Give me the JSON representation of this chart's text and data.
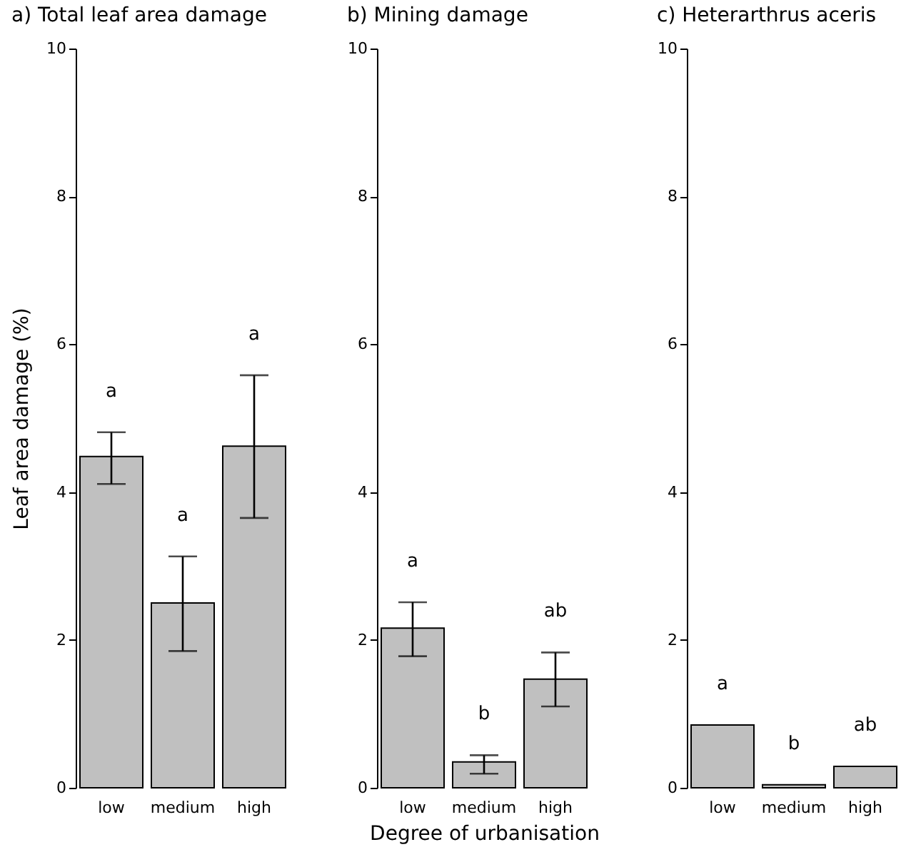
{
  "chart_data": [
    {
      "type": "bar",
      "title": "a) Total leaf area damage",
      "ylabel": "Leaf area damage (%)",
      "categories": [
        "low",
        "medium",
        "high"
      ],
      "values": [
        4.48,
        2.5,
        4.62
      ],
      "errors": [
        [
          4.11,
          4.81
        ],
        [
          1.85,
          3.13
        ],
        [
          3.65,
          5.58
        ]
      ],
      "color": "#c0c0c0",
      "ylim": [
        0,
        10
      ],
      "yticks": [
        0,
        2,
        4,
        6,
        8,
        10
      ],
      "annotations": [
        "a",
        "a",
        "a"
      ]
    },
    {
      "type": "bar",
      "title": "b) Mining damage",
      "xlabel": "Degree of urbanisation",
      "categories": [
        "low",
        "medium",
        "high"
      ],
      "values": [
        2.16,
        0.35,
        1.47
      ],
      "errors": [
        [
          1.78,
          2.51
        ],
        [
          0.19,
          0.44
        ],
        [
          1.1,
          1.83
        ]
      ],
      "color": "#c0c0c0",
      "ylim": [
        0,
        10
      ],
      "yticks": [
        0,
        2,
        4,
        6,
        8,
        10
      ],
      "annotations": [
        "a",
        "b",
        "ab"
      ]
    },
    {
      "type": "bar",
      "title": "c) Heterarthrus aceris",
      "categories": [
        "low",
        "medium",
        "high"
      ],
      "values": [
        0.85,
        0.04,
        0.29
      ],
      "color": "#c0c0c0",
      "ylim": [
        0,
        10
      ],
      "yticks": [
        0,
        2,
        4,
        6,
        8,
        10
      ],
      "annotations": [
        "a",
        "b",
        "ab"
      ]
    }
  ]
}
